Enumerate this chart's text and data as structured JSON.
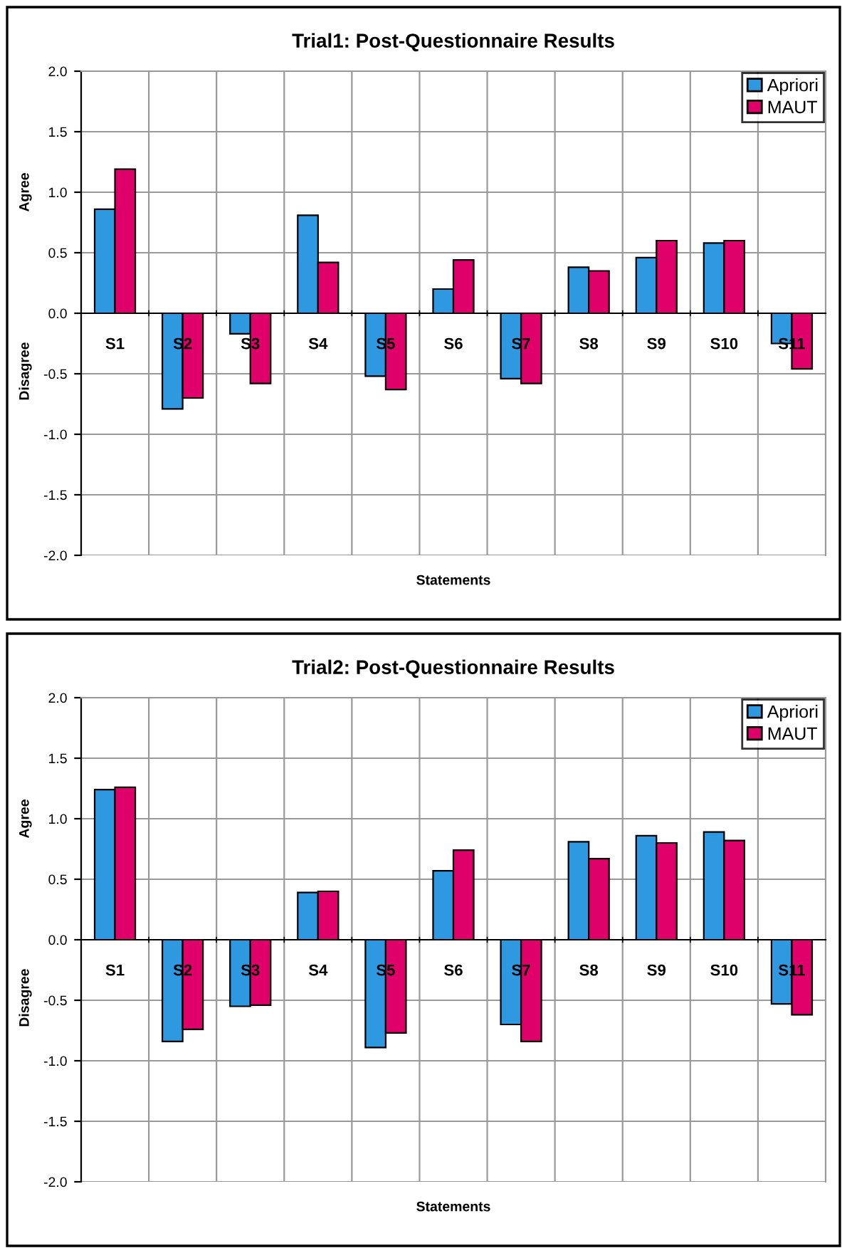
{
  "chart_data": [
    {
      "type": "bar",
      "title": "Trial1: Post-Questionnaire Results",
      "xlabel": "Statements",
      "ylabel": "Agree",
      "annotations": [
        "Disagree"
      ],
      "categories": [
        "S1",
        "S2",
        "S3",
        "S4",
        "S5",
        "S6",
        "S7",
        "S8",
        "S9",
        "S10",
        "S11"
      ],
      "series": [
        {
          "name": "Apriori",
          "color": "#2e98e0",
          "values": [
            0.86,
            -0.79,
            -0.17,
            0.81,
            -0.52,
            0.2,
            -0.54,
            0.38,
            0.46,
            0.58,
            -0.25
          ]
        },
        {
          "name": "MAUT",
          "color": "#e0006a",
          "values": [
            1.19,
            -0.7,
            -0.58,
            0.42,
            -0.63,
            0.44,
            -0.58,
            0.35,
            0.6,
            0.6,
            -0.46
          ]
        }
      ],
      "ylim": [
        -2.0,
        2.0
      ],
      "yticks": [
        {
          "value": 2.0,
          "label": "2.0"
        },
        {
          "value": 1.5,
          "label": "1.5"
        },
        {
          "value": 1.0,
          "label": "1.0"
        },
        {
          "value": 0.5,
          "label": "0.5"
        },
        {
          "value": 0.0,
          "label": "0.0"
        },
        {
          "value": -0.5,
          "label": "-0.5"
        },
        {
          "value": -1.0,
          "label": "-1.0"
        },
        {
          "value": -1.5,
          "label": "-1.5"
        },
        {
          "value": -2.0,
          "label": "-2.0"
        }
      ],
      "grid": true,
      "legend": "top right"
    },
    {
      "type": "bar",
      "title": "Trial2: Post-Questionnaire Results",
      "xlabel": "Statements",
      "ylabel": "Agree",
      "annotations": [
        "Disagree"
      ],
      "categories": [
        "S1",
        "S2",
        "S3",
        "S4",
        "S5",
        "S6",
        "S7",
        "S8",
        "S9",
        "S10",
        "S11"
      ],
      "series": [
        {
          "name": "Apriori",
          "color": "#2e98e0",
          "values": [
            1.24,
            -0.84,
            -0.55,
            0.39,
            -0.89,
            0.57,
            -0.7,
            0.81,
            0.86,
            0.89,
            -0.53
          ]
        },
        {
          "name": "MAUT",
          "color": "#e0006a",
          "values": [
            1.26,
            -0.74,
            -0.54,
            0.4,
            -0.77,
            0.74,
            -0.84,
            0.67,
            0.8,
            0.82,
            -0.62
          ]
        }
      ],
      "ylim": [
        -2.0,
        2.0
      ],
      "yticks": [
        {
          "value": 2.0,
          "label": "2.0"
        },
        {
          "value": 1.5,
          "label": "1.5"
        },
        {
          "value": 1.0,
          "label": "1.0"
        },
        {
          "value": 0.5,
          "label": "0.5"
        },
        {
          "value": 0.0,
          "label": "0.0"
        },
        {
          "value": -0.5,
          "label": "-0.5"
        },
        {
          "value": -1.0,
          "label": "-1.0"
        },
        {
          "value": -1.5,
          "label": "-1.5"
        },
        {
          "value": -2.0,
          "label": "-2.0"
        }
      ],
      "grid": true,
      "legend": "top right"
    }
  ]
}
